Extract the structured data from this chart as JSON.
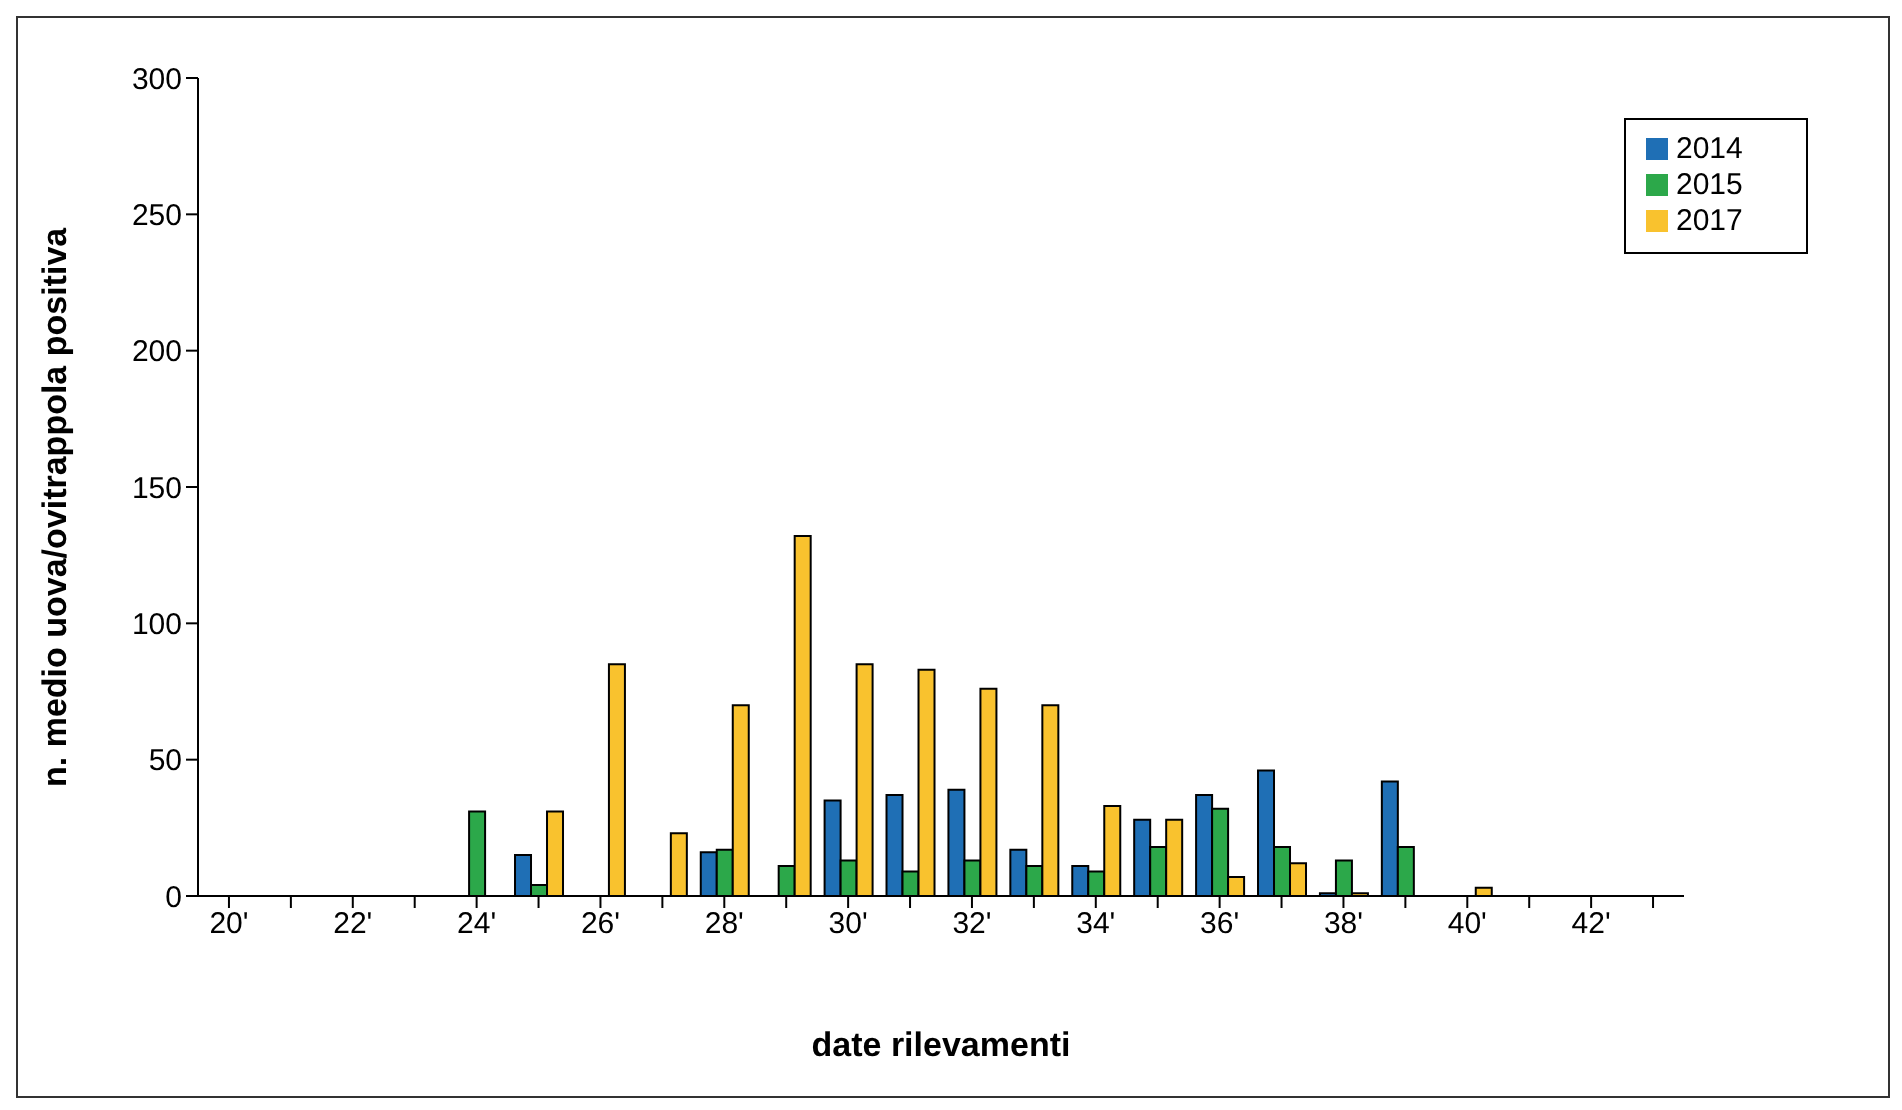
{
  "chart_data": {
    "type": "bar",
    "xlabel": "date rilevamenti",
    "ylabel": "n. medio uova/ovitrappola positiva",
    "categories": [
      "20'",
      null,
      "22'",
      null,
      "24'",
      null,
      "26'",
      null,
      "28'",
      null,
      "30'",
      null,
      "32'",
      null,
      "34'",
      null,
      "36'",
      null,
      "38'",
      null,
      "40'",
      null,
      "42'",
      null
    ],
    "series": [
      {
        "name": "2014",
        "color": "#1f6fb5",
        "values": [
          null,
          null,
          null,
          null,
          null,
          15,
          null,
          null,
          16,
          null,
          35,
          37,
          39,
          17,
          11,
          28,
          37,
          46,
          1,
          42,
          null,
          null,
          null,
          null
        ]
      },
      {
        "name": "2015",
        "color": "#2ca84a",
        "values": [
          null,
          null,
          null,
          null,
          31,
          4,
          null,
          null,
          17,
          11,
          13,
          9,
          13,
          11,
          9,
          18,
          32,
          18,
          13,
          18,
          null,
          null,
          null,
          null
        ]
      },
      {
        "name": "2017",
        "color": "#f9c22e",
        "values": [
          null,
          null,
          null,
          null,
          null,
          31,
          85,
          23,
          70,
          132,
          85,
          83,
          76,
          70,
          33,
          28,
          7,
          12,
          1,
          null,
          3,
          null,
          null,
          null
        ]
      }
    ],
    "ylim": [
      0,
      300
    ],
    "yticks": [
      0,
      50,
      100,
      150,
      200,
      250,
      300
    ],
    "grid": false,
    "legend": "top right"
  }
}
